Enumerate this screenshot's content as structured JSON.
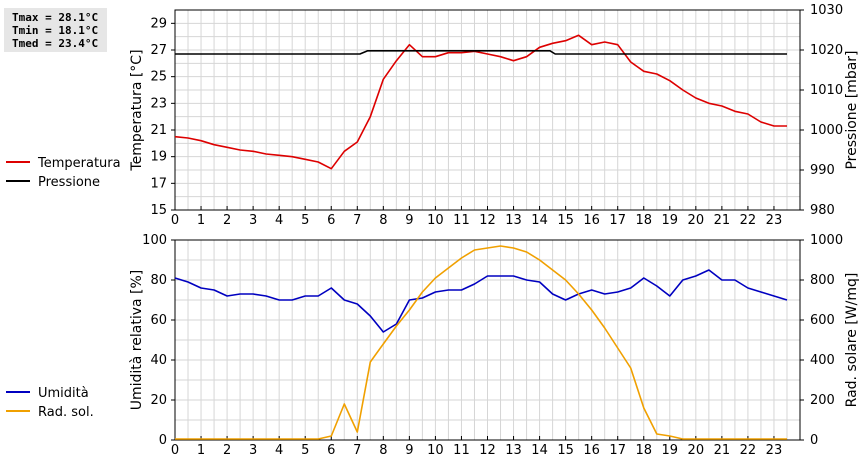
{
  "stats": {
    "tmax": "Tmax = 28.1°C",
    "tmin": "Tmin = 18.1°C",
    "tmed": "Tmed = 23.4°C"
  },
  "chart_data": [
    {
      "type": "line",
      "panel": "top",
      "ylabel": "Temperatura [°C]",
      "y2label": "Pressione [mbar]",
      "xlim": [
        0,
        24
      ],
      "xticks": [
        0,
        1,
        2,
        3,
        4,
        5,
        6,
        7,
        8,
        9,
        10,
        11,
        12,
        13,
        14,
        15,
        16,
        17,
        18,
        19,
        20,
        21,
        22,
        23
      ],
      "ylim": [
        15,
        30
      ],
      "yticks": [
        15,
        17,
        19,
        21,
        23,
        25,
        27,
        29
      ],
      "y2lim": [
        980,
        1030
      ],
      "y2ticks": [
        980,
        990,
        1000,
        1010,
        1020,
        1030
      ],
      "grid": true,
      "legend_position": "left",
      "series": [
        {
          "name": "Temperatura",
          "axis": "left",
          "color": "#dd0000",
          "x": [
            0,
            0.5,
            1,
            1.5,
            2,
            2.5,
            3,
            3.5,
            4,
            4.5,
            5,
            5.5,
            6,
            6.5,
            7,
            7.5,
            8,
            8.5,
            9,
            9.5,
            10,
            10.5,
            11,
            11.5,
            12,
            12.5,
            13,
            13.5,
            14,
            14.5,
            15,
            15.5,
            16,
            16.5,
            17,
            17.5,
            18,
            18.5,
            19,
            19.5,
            20,
            20.5,
            21,
            21.5,
            22,
            22.5,
            23,
            23.5
          ],
          "values": [
            20.5,
            20.4,
            20.2,
            19.9,
            19.7,
            19.5,
            19.4,
            19.2,
            19.1,
            19.0,
            18.8,
            18.6,
            18.1,
            19.4,
            20.1,
            22.0,
            24.8,
            26.2,
            27.4,
            26.5,
            26.5,
            26.8,
            26.8,
            26.9,
            26.7,
            26.5,
            26.2,
            26.5,
            27.2,
            27.5,
            27.7,
            28.1,
            27.4,
            27.6,
            27.4,
            26.1,
            25.4,
            25.2,
            24.7,
            24.0,
            23.4,
            23.0,
            22.8,
            22.4,
            22.2,
            21.6,
            21.3,
            21.3
          ]
        },
        {
          "name": "Pressione",
          "axis": "right",
          "color": "#000000",
          "x": [
            0,
            7.1,
            7.4,
            14.4,
            14.6,
            23.5
          ],
          "values": [
            1019,
            1019,
            1019.8,
            1019.8,
            1019,
            1019
          ]
        }
      ]
    },
    {
      "type": "line",
      "panel": "bottom",
      "ylabel": "Umidità relativa [%]",
      "y2label": "Rad. solare [W/mq]",
      "xlim": [
        0,
        24
      ],
      "xticks": [
        0,
        1,
        2,
        3,
        4,
        5,
        6,
        7,
        8,
        9,
        10,
        11,
        12,
        13,
        14,
        15,
        16,
        17,
        18,
        19,
        20,
        21,
        22,
        23
      ],
      "ylim": [
        0,
        100
      ],
      "yticks": [
        0,
        20,
        40,
        60,
        80,
        100
      ],
      "y2lim": [
        0,
        1000
      ],
      "y2ticks": [
        0,
        200,
        400,
        600,
        800,
        1000
      ],
      "grid": true,
      "legend_position": "left",
      "series": [
        {
          "name": "Umidità",
          "axis": "left",
          "color": "#0000c0",
          "x": [
            0,
            0.5,
            1,
            1.5,
            2,
            2.5,
            3,
            3.5,
            4,
            4.5,
            5,
            5.5,
            6,
            6.5,
            7,
            7.5,
            8,
            8.5,
            9,
            9.5,
            10,
            10.5,
            11,
            11.5,
            12,
            12.5,
            13,
            13.5,
            14,
            14.5,
            15,
            15.5,
            16,
            16.5,
            17,
            17.5,
            18,
            18.5,
            19,
            19.5,
            20,
            20.5,
            21,
            21.5,
            22,
            22.5,
            23,
            23.5
          ],
          "values": [
            81,
            79,
            76,
            75,
            72,
            73,
            73,
            72,
            70,
            70,
            72,
            72,
            76,
            70,
            68,
            62,
            54,
            58,
            70,
            71,
            74,
            75,
            75,
            78,
            82,
            82,
            82,
            80,
            79,
            73,
            70,
            73,
            75,
            73,
            74,
            76,
            81,
            77,
            72,
            80,
            82,
            85,
            80,
            80,
            76,
            74,
            72,
            70
          ]
        },
        {
          "name": "Rad. sol.",
          "axis": "right",
          "color": "#f0a000",
          "x": [
            0,
            0.5,
            1,
            1.5,
            2,
            2.5,
            3,
            3.5,
            4,
            4.5,
            5,
            5.5,
            6,
            6.5,
            7,
            7.5,
            8,
            8.5,
            9,
            9.5,
            10,
            10.5,
            11,
            11.5,
            12,
            12.5,
            13,
            13.5,
            14,
            14.5,
            15,
            15.5,
            16,
            16.5,
            17,
            17.5,
            18,
            18.5,
            19,
            19.5,
            20,
            20.5,
            21,
            21.5,
            22,
            22.5,
            23,
            23.5
          ],
          "values": [
            5,
            5,
            5,
            5,
            5,
            5,
            5,
            5,
            5,
            5,
            5,
            5,
            20,
            180,
            40,
            390,
            480,
            570,
            650,
            740,
            810,
            860,
            910,
            950,
            960,
            970,
            960,
            940,
            900,
            850,
            800,
            730,
            650,
            560,
            460,
            360,
            160,
            30,
            20,
            5,
            5,
            5,
            5,
            5,
            5,
            5,
            5,
            5
          ]
        }
      ]
    }
  ]
}
